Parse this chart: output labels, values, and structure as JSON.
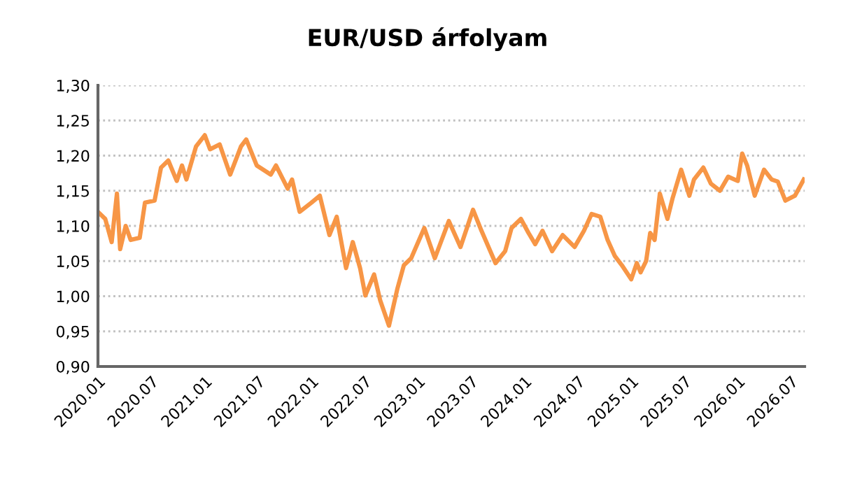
{
  "chart_data": {
    "type": "line",
    "title": "EUR/USD árfolyam",
    "x": [
      "2020-01-01",
      "2020-01-26",
      "2020-02-17",
      "2020-03-06",
      "2020-03-17",
      "2020-04-05",
      "2020-04-22",
      "2020-05-23",
      "2020-06-10",
      "2020-07-13",
      "2020-08-04",
      "2020-08-29",
      "2020-09-27",
      "2020-10-15",
      "2020-10-30",
      "2020-12-02",
      "2021-01-01",
      "2021-01-19",
      "2021-02-21",
      "2021-03-29",
      "2021-05-05",
      "2021-05-23",
      "2021-06-28",
      "2021-08-15",
      "2021-09-02",
      "2021-10-12",
      "2021-10-27",
      "2021-11-22",
      "2022-01-01",
      "2022-01-30",
      "2022-03-04",
      "2022-03-29",
      "2022-04-30",
      "2022-05-23",
      "2022-06-17",
      "2022-07-05",
      "2022-08-04",
      "2022-08-25",
      "2022-09-24",
      "2022-10-23",
      "2022-11-14",
      "2022-12-09",
      "2023-01-23",
      "2023-02-28",
      "2023-04-17",
      "2023-05-27",
      "2023-06-18",
      "2023-07-09",
      "2023-08-07",
      "2023-09-24",
      "2023-10-27",
      "2023-11-18",
      "2023-12-20",
      "2024-01-15",
      "2024-02-07",
      "2024-03-03",
      "2024-04-05",
      "2024-05-11",
      "2024-06-21",
      "2024-07-23",
      "2024-08-18",
      "2024-09-17",
      "2024-10-12",
      "2024-11-06",
      "2024-11-30",
      "2025-01-01",
      "2025-01-20",
      "2025-02-02",
      "2025-02-21",
      "2025-03-07",
      "2025-03-22",
      "2025-04-09",
      "2025-05-05",
      "2025-05-23",
      "2025-06-21",
      "2025-07-19",
      "2025-08-04",
      "2025-09-05",
      "2025-10-01",
      "2025-11-01",
      "2025-11-29",
      "2026-01-01",
      "2026-01-16",
      "2026-02-02",
      "2026-02-28",
      "2026-04-01",
      "2026-04-27",
      "2026-05-18",
      "2026-06-13",
      "2026-07-16",
      "2026-08-15"
    ],
    "series": [
      {
        "color": "#f79646",
        "values": [
          1.12,
          1.11,
          1.077,
          1.146,
          1.067,
          1.1,
          1.08,
          1.083,
          1.133,
          1.136,
          1.183,
          1.193,
          1.164,
          1.186,
          1.166,
          1.213,
          1.229,
          1.209,
          1.216,
          1.173,
          1.213,
          1.223,
          1.186,
          1.173,
          1.186,
          1.153,
          1.166,
          1.12,
          1.133,
          1.143,
          1.087,
          1.113,
          1.04,
          1.077,
          1.04,
          1.001,
          1.031,
          0.994,
          0.958,
          1.011,
          1.044,
          1.054,
          1.097,
          1.054,
          1.107,
          1.07,
          1.097,
          1.123,
          1.093,
          1.047,
          1.064,
          1.097,
          1.11,
          1.09,
          1.074,
          1.093,
          1.064,
          1.087,
          1.07,
          1.093,
          1.117,
          1.113,
          1.08,
          1.057,
          1.044,
          1.024,
          1.047,
          1.034,
          1.05,
          1.09,
          1.08,
          1.146,
          1.11,
          1.14,
          1.18,
          1.143,
          1.166,
          1.183,
          1.16,
          1.15,
          1.17,
          1.164,
          1.203,
          1.186,
          1.143,
          1.18,
          1.166,
          1.163,
          1.136,
          1.143,
          1.166
        ]
      }
    ],
    "xlim": [
      "2020-01-01",
      "2026-08-18"
    ],
    "xticks": [
      {
        "value": "2020-01-01",
        "label": "2020.01"
      },
      {
        "value": "2020-07-01",
        "label": "2020.07"
      },
      {
        "value": "2021-01-01",
        "label": "2021.01"
      },
      {
        "value": "2021-07-01",
        "label": "2021.07"
      },
      {
        "value": "2022-01-01",
        "label": "2022.01"
      },
      {
        "value": "2022-07-01",
        "label": "2022.07"
      },
      {
        "value": "2023-01-01",
        "label": "2023.01"
      },
      {
        "value": "2023-07-01",
        "label": "2023.07"
      },
      {
        "value": "2024-01-01",
        "label": "2024.01"
      },
      {
        "value": "2024-07-01",
        "label": "2024.07"
      },
      {
        "value": "2025-01-01",
        "label": "2025.01"
      },
      {
        "value": "2025-07-01",
        "label": "2025.07"
      },
      {
        "value": "2026-01-01",
        "label": "2026.01"
      },
      {
        "value": "2026-07-01",
        "label": "2026.07"
      }
    ],
    "ylim": [
      0.9,
      1.3
    ],
    "yticks": [
      {
        "value": 0.9,
        "label": "0,90"
      },
      {
        "value": 0.95,
        "label": "0,95"
      },
      {
        "value": 1.0,
        "label": "1,00"
      },
      {
        "value": 1.05,
        "label": "1,05"
      },
      {
        "value": 1.1,
        "label": "1,10"
      },
      {
        "value": 1.15,
        "label": "1,15"
      },
      {
        "value": 1.2,
        "label": "1,20"
      },
      {
        "value": 1.25,
        "label": "1,25"
      },
      {
        "value": 1.3,
        "label": "1,30"
      }
    ],
    "grid": "y",
    "line_style": "solid"
  }
}
